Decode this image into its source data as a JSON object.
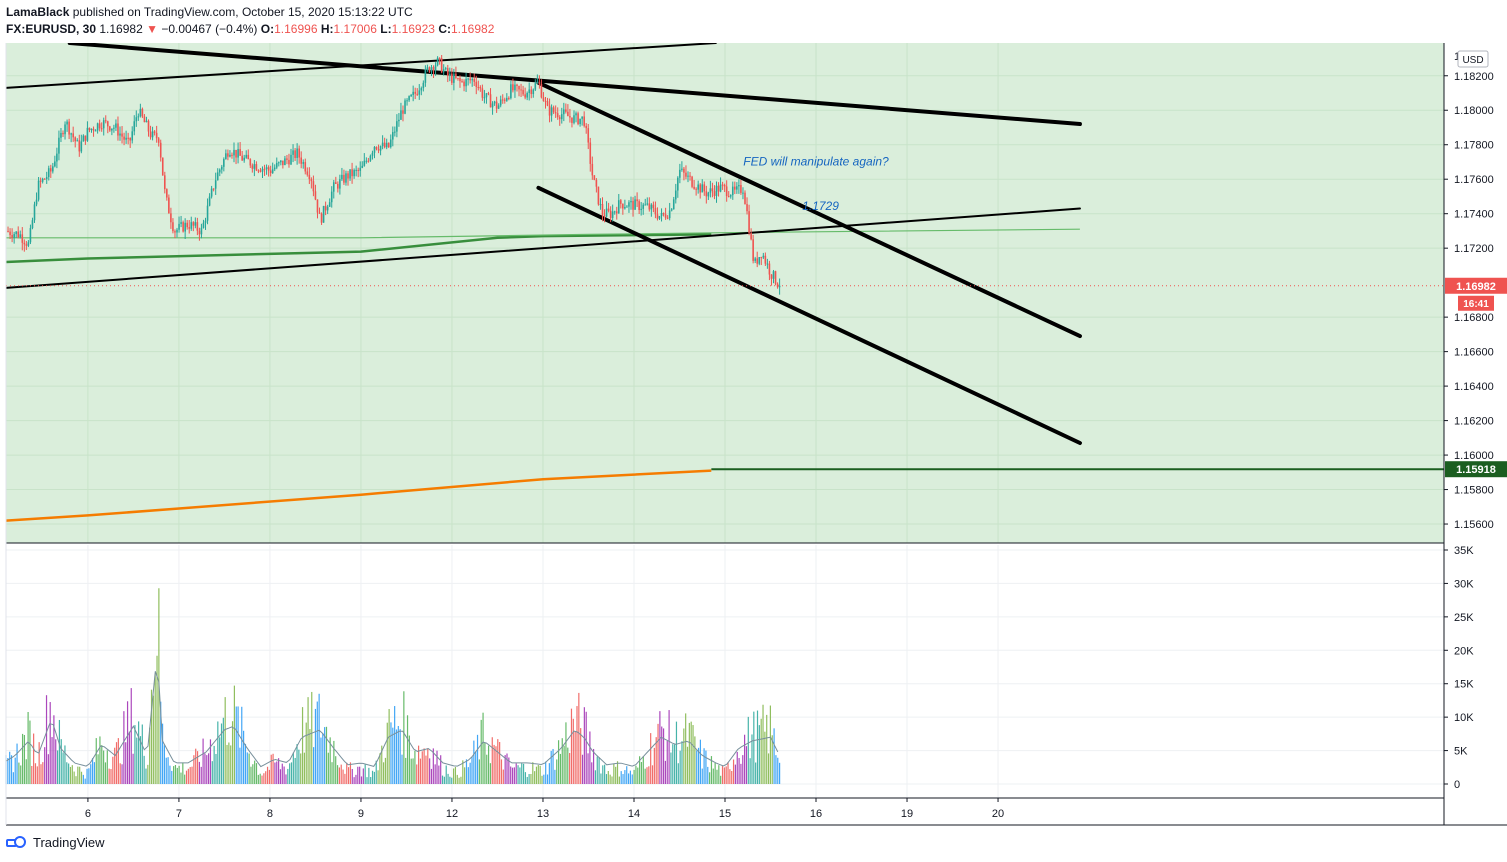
{
  "header": {
    "author": "LamaBlack",
    "published_text": "published on TradingView.com, October 15, 2020 15:13:22 UTC",
    "symbol": "FX:EURUSD, 30",
    "last": "1.16982",
    "arrow": "▼",
    "change": "−0.00467 (−0.4%)",
    "o_label": "O:",
    "o_value": "1.16996",
    "h_label": "H:",
    "h_value": "1.17006",
    "l_label": "L:",
    "l_value": "1.16923",
    "c_label": "C:",
    "c_value": "1.16982"
  },
  "footer": {
    "brand": "TradingView"
  },
  "chart_data": {
    "type": "candlestick",
    "currency_label": "USD",
    "price_axis": {
      "range": [
        1.1549,
        1.1839
      ],
      "tick_values": [
        1.156,
        1.158,
        1.16,
        1.162,
        1.164,
        1.166,
        1.168,
        1.172,
        1.174,
        1.176,
        1.178,
        1.18,
        1.182
      ],
      "tick_labels": [
        "1.15600",
        "1.15800",
        "1.16000",
        "1.16200",
        "1.16400",
        "1.16600",
        "1.16800",
        "1.17200",
        "1.17400",
        "1.17600",
        "1.17800",
        "1.18000",
        "1.18200"
      ],
      "partial_top_label": "1.1"
    },
    "time_axis": {
      "range": [
        5.1,
        20.9
      ],
      "labels": [
        {
          "t": 6,
          "text": "6"
        },
        {
          "t": 7,
          "text": "7"
        },
        {
          "t": 8,
          "text": "8"
        },
        {
          "t": 9,
          "text": "9"
        },
        {
          "t": 10,
          "text": "12"
        },
        {
          "t": 11,
          "text": "13"
        },
        {
          "t": 12,
          "text": "14"
        },
        {
          "t": 13,
          "text": "15"
        },
        {
          "t": 14,
          "text": "16"
        },
        {
          "t": 15,
          "text": "19"
        },
        {
          "t": 16,
          "text": "20"
        }
      ]
    },
    "volume_axis": {
      "range": [
        0,
        35000
      ],
      "tick_values": [
        0,
        5000,
        10000,
        15000,
        20000,
        25000,
        30000,
        35000
      ],
      "tick_labels": [
        "0",
        "5K",
        "10K",
        "15K",
        "20K",
        "25K",
        "30K",
        "35K"
      ]
    },
    "price_path": [
      [
        5.1,
        1.173
      ],
      [
        5.25,
        1.1728
      ],
      [
        5.35,
        1.1722
      ],
      [
        5.45,
        1.1756
      ],
      [
        5.6,
        1.1765
      ],
      [
        5.75,
        1.1794
      ],
      [
        5.9,
        1.1778
      ],
      [
        6.0,
        1.1788
      ],
      [
        6.15,
        1.1793
      ],
      [
        6.3,
        1.179
      ],
      [
        6.45,
        1.178
      ],
      [
        6.55,
        1.18
      ],
      [
        6.7,
        1.1785
      ],
      [
        6.78,
        1.1784
      ],
      [
        6.85,
        1.175
      ],
      [
        6.95,
        1.173
      ],
      [
        7.1,
        1.1734
      ],
      [
        7.25,
        1.173
      ],
      [
        7.4,
        1.176
      ],
      [
        7.55,
        1.1778
      ],
      [
        7.7,
        1.1772
      ],
      [
        7.85,
        1.1768
      ],
      [
        8.0,
        1.1765
      ],
      [
        8.15,
        1.177
      ],
      [
        8.3,
        1.1775
      ],
      [
        8.45,
        1.1762
      ],
      [
        8.55,
        1.1736
      ],
      [
        8.7,
        1.1755
      ],
      [
        8.85,
        1.1762
      ],
      [
        9.0,
        1.1765
      ],
      [
        9.15,
        1.178
      ],
      [
        9.3,
        1.1778
      ],
      [
        9.45,
        1.18
      ],
      [
        9.6,
        1.181
      ],
      [
        9.75,
        1.1825
      ],
      [
        9.85,
        1.1828
      ],
      [
        9.95,
        1.182
      ],
      [
        10.1,
        1.1816
      ],
      [
        10.25,
        1.1818
      ],
      [
        10.35,
        1.1808
      ],
      [
        10.5,
        1.1802
      ],
      [
        10.65,
        1.1812
      ],
      [
        10.8,
        1.181
      ],
      [
        10.95,
        1.1816
      ],
      [
        11.05,
        1.18
      ],
      [
        11.2,
        1.1798
      ],
      [
        11.35,
        1.1795
      ],
      [
        11.45,
        1.1795
      ],
      [
        11.55,
        1.176
      ],
      [
        11.65,
        1.174
      ],
      [
        11.75,
        1.174
      ],
      [
        11.85,
        1.1746
      ],
      [
        12.0,
        1.1745
      ],
      [
        12.15,
        1.1744
      ],
      [
        12.3,
        1.1738
      ],
      [
        12.4,
        1.1742
      ],
      [
        12.5,
        1.1765
      ],
      [
        12.65,
        1.1758
      ],
      [
        12.8,
        1.1752
      ],
      [
        12.95,
        1.1755
      ],
      [
        13.1,
        1.1752
      ],
      [
        13.2,
        1.1755
      ],
      [
        13.25,
        1.1738
      ],
      [
        13.32,
        1.171
      ],
      [
        13.4,
        1.1718
      ],
      [
        13.5,
        1.1706
      ],
      [
        13.6,
        1.1698
      ]
    ],
    "volume_path": [
      [
        5.1,
        3500
      ],
      [
        5.2,
        5000
      ],
      [
        5.35,
        9000
      ],
      [
        5.45,
        5000
      ],
      [
        5.6,
        15000
      ],
      [
        5.7,
        7000
      ],
      [
        5.85,
        3000
      ],
      [
        6.0,
        2000
      ],
      [
        6.15,
        8000
      ],
      [
        6.3,
        5000
      ],
      [
        6.5,
        13000
      ],
      [
        6.65,
        5000
      ],
      [
        6.76,
        33000
      ],
      [
        6.82,
        9000
      ],
      [
        6.95,
        3000
      ],
      [
        7.1,
        3000
      ],
      [
        7.3,
        6000
      ],
      [
        7.5,
        12000
      ],
      [
        7.6,
        13000
      ],
      [
        7.75,
        7000
      ],
      [
        7.9,
        2000
      ],
      [
        8.05,
        4000
      ],
      [
        8.2,
        3000
      ],
      [
        8.35,
        10000
      ],
      [
        8.55,
        12000
      ],
      [
        8.7,
        7000
      ],
      [
        8.85,
        2500
      ],
      [
        9.0,
        3000
      ],
      [
        9.15,
        2000
      ],
      [
        9.3,
        10000
      ],
      [
        9.45,
        12000
      ],
      [
        9.6,
        6000
      ],
      [
        9.75,
        7000
      ],
      [
        9.9,
        3000
      ],
      [
        10.05,
        2000
      ],
      [
        10.2,
        4000
      ],
      [
        10.35,
        9000
      ],
      [
        10.5,
        6000
      ],
      [
        10.65,
        3000
      ],
      [
        10.85,
        3000
      ],
      [
        11.0,
        2500
      ],
      [
        11.2,
        7000
      ],
      [
        11.35,
        12000
      ],
      [
        11.45,
        10000
      ],
      [
        11.55,
        6000
      ],
      [
        11.7,
        2500
      ],
      [
        11.85,
        3000
      ],
      [
        12.0,
        2000
      ],
      [
        12.15,
        6000
      ],
      [
        12.3,
        10000
      ],
      [
        12.45,
        8000
      ],
      [
        12.6,
        9000
      ],
      [
        12.75,
        5000
      ],
      [
        12.9,
        3000
      ],
      [
        13.0,
        2000
      ],
      [
        13.15,
        7000
      ],
      [
        13.3,
        9000
      ],
      [
        13.5,
        10000
      ],
      [
        13.6,
        5000
      ]
    ],
    "current_price": 1.16982,
    "current_price_label": "1.16982",
    "countdown": "16:41",
    "support_level": 1.15918,
    "support_label": "1.15918",
    "annotations": [
      {
        "text": "FED will manipulate again?",
        "t": 14.0,
        "price": 1.1768
      },
      {
        "text": "1.1729",
        "t": 14.05,
        "price": 1.1742
      }
    ],
    "trendlines": [
      {
        "color": "#000000",
        "width": 4,
        "p1": [
          5.8,
          1.1839
        ],
        "p2": [
          16.9,
          1.1792
        ]
      },
      {
        "color": "#000000",
        "width": 2,
        "p1": [
          5.1,
          1.1813
        ],
        "p2": [
          12.9,
          1.1839
        ]
      },
      {
        "color": "#000000",
        "width": 4,
        "p1": [
          10.95,
          1.1816
        ],
        "p2": [
          16.9,
          1.1669
        ]
      },
      {
        "color": "#000000",
        "width": 4,
        "p1": [
          10.95,
          1.1755
        ],
        "p2": [
          16.9,
          1.1607
        ]
      },
      {
        "color": "#000000",
        "width": 2,
        "p1": [
          5.1,
          1.1697
        ],
        "p2": [
          16.9,
          1.1743
        ]
      }
    ],
    "moving_averages": [
      {
        "color": "#388e3c",
        "width": 2.5,
        "points": [
          [
            5.1,
            1.1712
          ],
          [
            6.0,
            1.1714
          ],
          [
            9.0,
            1.1718
          ],
          [
            10.5,
            1.1726
          ],
          [
            11.0,
            1.1727
          ],
          [
            12.85,
            1.1728
          ]
        ]
      },
      {
        "color": "#66bb6a",
        "width": 1.2,
        "points": [
          [
            5.1,
            1.1726
          ],
          [
            9.0,
            1.1726
          ],
          [
            11.5,
            1.1728
          ],
          [
            13.0,
            1.1729
          ],
          [
            16.9,
            1.1731
          ]
        ]
      },
      {
        "color": "#f57c00",
        "width": 2.5,
        "points": [
          [
            5.1,
            1.1562
          ],
          [
            6.0,
            1.1565
          ],
          [
            9.0,
            1.1577
          ],
          [
            11.0,
            1.1586
          ],
          [
            12.85,
            1.1591
          ]
        ]
      }
    ],
    "grid": true,
    "legend": "none"
  }
}
